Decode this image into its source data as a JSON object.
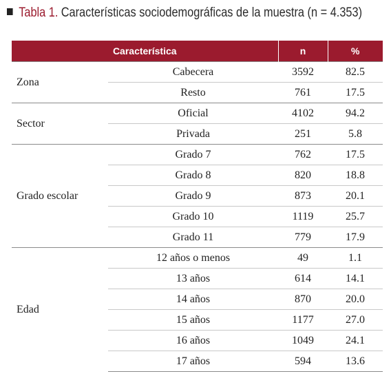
{
  "title": {
    "label": "Tabla 1.",
    "text": "Características sociodemográficas de la muestra (n = 4.353)"
  },
  "table": {
    "header": [
      "Característica",
      "n",
      "%"
    ],
    "groups": [
      {
        "name": "Zona",
        "rows": [
          [
            "Cabecera",
            "3592",
            "82.5"
          ],
          [
            "Resto",
            "761",
            "17.5"
          ]
        ]
      },
      {
        "name": "Sector",
        "rows": [
          [
            "Oficial",
            "4102",
            "94.2"
          ],
          [
            "Privada",
            "251",
            "5.8"
          ]
        ]
      },
      {
        "name": "Grado escolar",
        "rows": [
          [
            "Grado 7",
            "762",
            "17.5"
          ],
          [
            "Grado 8",
            "820",
            "18.8"
          ],
          [
            "Grado 9",
            "873",
            "20.1"
          ],
          [
            "Grado 10",
            "1119",
            "25.7"
          ],
          [
            "Grado 11",
            "779",
            "17.9"
          ]
        ]
      },
      {
        "name": "Edad",
        "rows": [
          [
            "12 años o menos",
            "49",
            "1.1"
          ],
          [
            "13 años",
            "614",
            "14.1"
          ],
          [
            "14 años",
            "870",
            "20.0"
          ],
          [
            "15 años",
            "1177",
            "27.0"
          ],
          [
            "16 años",
            "1049",
            "24.1"
          ],
          [
            "17 años",
            "594",
            "13.6"
          ]
        ]
      }
    ]
  }
}
